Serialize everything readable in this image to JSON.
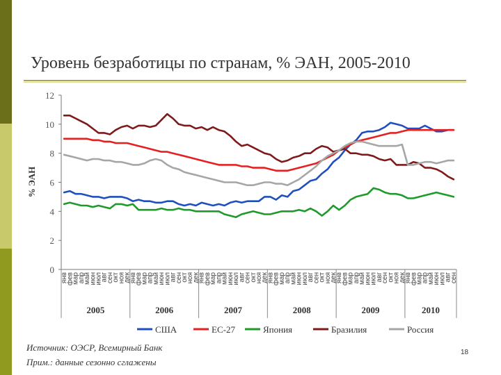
{
  "slide": {
    "title": "Уровень безработицы по странам, % ЭАН, 2005-2010",
    "source": "Источник: ОЭСР, Всемирный Банк",
    "note": "Прим.: данные сезонно сглажены",
    "page_number": "18"
  },
  "chart_data": {
    "type": "line",
    "ylabel": "% ЭАН",
    "ylim": [
      0,
      12
    ],
    "yticks": [
      0,
      2,
      4,
      6,
      8,
      10,
      12
    ],
    "grid": false,
    "legend_position": "bottom",
    "month_labels": [
      "янв",
      "фев",
      "мар",
      "апр",
      "май",
      "июн",
      "июл",
      "авг",
      "сен",
      "окт",
      "ноя",
      "дек"
    ],
    "years": [
      "2005",
      "2006",
      "2007",
      "2008",
      "2009",
      "2010"
    ],
    "x_start": "2005-01",
    "x_end": "2010-09",
    "series": [
      {
        "name": "США",
        "color": "#1f4fbf",
        "values": [
          5.3,
          5.4,
          5.2,
          5.2,
          5.1,
          5.0,
          5.0,
          4.9,
          5.0,
          5.0,
          5.0,
          4.9,
          4.7,
          4.8,
          4.7,
          4.7,
          4.6,
          4.6,
          4.7,
          4.7,
          4.5,
          4.4,
          4.5,
          4.4,
          4.6,
          4.5,
          4.4,
          4.5,
          4.4,
          4.6,
          4.7,
          4.6,
          4.7,
          4.7,
          4.7,
          5.0,
          5.0,
          4.8,
          5.1,
          5.0,
          5.4,
          5.5,
          5.8,
          6.1,
          6.2,
          6.6,
          6.9,
          7.4,
          7.7,
          8.2,
          8.6,
          8.9,
          9.4,
          9.5,
          9.5,
          9.6,
          9.8,
          10.1,
          10.0,
          9.9,
          9.7,
          9.7,
          9.7,
          9.9,
          9.7,
          9.5,
          9.5,
          9.6,
          9.6
        ]
      },
      {
        "name": "ЕС-27",
        "color": "#e62020",
        "values": [
          9.0,
          9.0,
          9.0,
          9.0,
          9.0,
          8.9,
          8.9,
          8.8,
          8.8,
          8.7,
          8.7,
          8.7,
          8.6,
          8.5,
          8.4,
          8.3,
          8.2,
          8.1,
          8.1,
          8.0,
          7.9,
          7.8,
          7.7,
          7.6,
          7.5,
          7.4,
          7.3,
          7.2,
          7.2,
          7.2,
          7.2,
          7.1,
          7.1,
          7.0,
          7.0,
          7.0,
          6.9,
          6.8,
          6.8,
          6.8,
          6.9,
          7.0,
          7.1,
          7.2,
          7.3,
          7.5,
          7.7,
          7.9,
          8.2,
          8.4,
          8.6,
          8.8,
          8.9,
          9.0,
          9.1,
          9.2,
          9.3,
          9.4,
          9.4,
          9.5,
          9.6,
          9.6,
          9.6,
          9.6,
          9.6,
          9.6,
          9.6,
          9.6,
          9.6
        ]
      },
      {
        "name": "Япония",
        "color": "#1e9a2a",
        "values": [
          4.5,
          4.6,
          4.5,
          4.4,
          4.4,
          4.3,
          4.4,
          4.3,
          4.2,
          4.5,
          4.5,
          4.4,
          4.5,
          4.1,
          4.1,
          4.1,
          4.1,
          4.2,
          4.1,
          4.1,
          4.2,
          4.1,
          4.1,
          4.0,
          4.0,
          4.0,
          4.0,
          4.0,
          3.8,
          3.7,
          3.6,
          3.8,
          3.9,
          4.0,
          3.9,
          3.8,
          3.8,
          3.9,
          4.0,
          4.0,
          4.0,
          4.1,
          4.0,
          4.2,
          4.0,
          3.7,
          4.0,
          4.4,
          4.1,
          4.4,
          4.8,
          5.0,
          5.1,
          5.2,
          5.6,
          5.5,
          5.3,
          5.2,
          5.2,
          5.1,
          4.9,
          4.9,
          5.0,
          5.1,
          5.2,
          5.3,
          5.2,
          5.1,
          5.0
        ]
      },
      {
        "name": "Бразилия",
        "color": "#7f1a1a",
        "values": [
          10.6,
          10.6,
          10.4,
          10.2,
          10.0,
          9.7,
          9.4,
          9.4,
          9.3,
          9.6,
          9.8,
          9.9,
          9.7,
          9.9,
          9.9,
          9.8,
          9.9,
          10.3,
          10.7,
          10.4,
          10.0,
          9.9,
          9.9,
          9.7,
          9.8,
          9.6,
          9.8,
          9.6,
          9.5,
          9.2,
          8.8,
          8.5,
          8.6,
          8.4,
          8.2,
          8.0,
          7.9,
          7.6,
          7.4,
          7.5,
          7.7,
          7.8,
          8.0,
          8.0,
          8.3,
          8.5,
          8.4,
          8.1,
          8.2,
          8.3,
          8.0,
          8.0,
          7.9,
          7.9,
          7.8,
          7.6,
          7.5,
          7.6,
          7.2,
          7.2,
          7.2,
          7.4,
          7.3,
          7.0,
          7.0,
          6.9,
          6.7,
          6.4,
          6.2
        ]
      },
      {
        "name": "Россия",
        "color": "#a6a6a6",
        "values": [
          7.9,
          7.8,
          7.7,
          7.6,
          7.5,
          7.6,
          7.6,
          7.5,
          7.5,
          7.4,
          7.4,
          7.3,
          7.2,
          7.2,
          7.3,
          7.5,
          7.6,
          7.5,
          7.2,
          7.0,
          6.9,
          6.7,
          6.6,
          6.5,
          6.4,
          6.3,
          6.2,
          6.1,
          6.0,
          6.0,
          6.0,
          5.9,
          5.8,
          5.8,
          5.9,
          6.0,
          6.0,
          5.9,
          5.9,
          5.8,
          6.0,
          6.2,
          6.5,
          6.8,
          7.1,
          7.5,
          7.8,
          8.0,
          8.2,
          8.5,
          8.7,
          8.8,
          8.8,
          8.7,
          8.6,
          8.5,
          8.5,
          8.5,
          8.5,
          8.6,
          7.2,
          7.2,
          7.3,
          7.4,
          7.4,
          7.3,
          7.4,
          7.5,
          7.5
        ]
      }
    ]
  }
}
